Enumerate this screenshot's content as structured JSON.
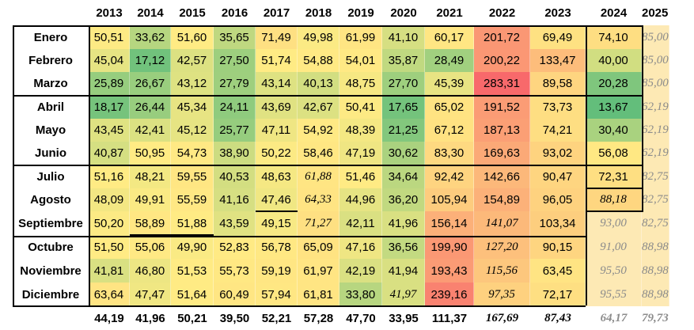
{
  "chart_data": {
    "type": "heatmap",
    "years": [
      "2013",
      "2014",
      "2015",
      "2016",
      "2017",
      "2018",
      "2019",
      "2020",
      "2021",
      "2022",
      "2023",
      "2024",
      "2025"
    ],
    "months": [
      "Enero",
      "Febrero",
      "Marzo",
      "Abril",
      "Mayo",
      "Junio",
      "Julio",
      "Agosto",
      "Septiembre",
      "Octubre",
      "Noviembre",
      "Diciembre"
    ],
    "values": [
      [
        "50,51",
        "33,62",
        "51,60",
        "35,65",
        "71,49",
        "49,98",
        "61,99",
        "41,10",
        "60,17",
        "201,72",
        "69,49",
        "74,10",
        "85,00"
      ],
      [
        "45,04",
        "17,12",
        "42,57",
        "27,50",
        "51,74",
        "54,88",
        "54,01",
        "35,87",
        "28,49",
        "200,22",
        "133,47",
        "40,00",
        "85,00"
      ],
      [
        "25,89",
        "26,67",
        "43,12",
        "27,79",
        "43,14",
        "40,13",
        "48,75",
        "27,70",
        "45,39",
        "283,31",
        "89,58",
        "20,28",
        "85,00"
      ],
      [
        "18,17",
        "26,44",
        "45,34",
        "24,11",
        "43,69",
        "42,67",
        "50,41",
        "17,65",
        "65,02",
        "191,52",
        "73,73",
        "13,67",
        "62,19"
      ],
      [
        "43,45",
        "42,41",
        "45,12",
        "25,77",
        "47,11",
        "54,92",
        "48,39",
        "21,25",
        "67,12",
        "187,13",
        "74,21",
        "30,40",
        "62,19"
      ],
      [
        "40,87",
        "50,95",
        "54,73",
        "38,90",
        "50,22",
        "58,46",
        "47,19",
        "30,62",
        "83,30",
        "169,63",
        "93,02",
        "56,08",
        "62,19"
      ],
      [
        "51,16",
        "48,21",
        "59,55",
        "40,53",
        "48,63",
        "61,88",
        "51,46",
        "34,64",
        "92,42",
        "142,66",
        "90,47",
        "72,31",
        "82,75"
      ],
      [
        "48,09",
        "49,91",
        "55,59",
        "41,16",
        "47,46",
        "64,33",
        "44,96",
        "36,20",
        "105,94",
        "154,89",
        "96,05",
        "88,18",
        "82,75"
      ],
      [
        "50,20",
        "58,89",
        "51,88",
        "43,59",
        "49,15",
        "71,27",
        "42,11",
        "41,96",
        "156,14",
        "141,07",
        "103,34",
        "93,00",
        "82,75"
      ],
      [
        "51,50",
        "55,06",
        "49,90",
        "52,83",
        "56,78",
        "65,09",
        "47,16",
        "36,56",
        "199,90",
        "127,20",
        "90,15",
        "91,00",
        "88,98"
      ],
      [
        "41,81",
        "46,80",
        "51,53",
        "55,73",
        "59,19",
        "61,97",
        "42,19",
        "41,94",
        "193,43",
        "115,56",
        "63,45",
        "95,50",
        "88,98"
      ],
      [
        "63,64",
        "47,47",
        "51,64",
        "60,49",
        "57,94",
        "61,81",
        "33,80",
        "41,97",
        "239,16",
        "97,35",
        "72,17",
        "95,55",
        "88,98"
      ]
    ],
    "estimated": [
      [
        false,
        false,
        false,
        false,
        false,
        false,
        false,
        false,
        false,
        false,
        false,
        false,
        true
      ],
      [
        false,
        false,
        false,
        false,
        false,
        false,
        false,
        false,
        false,
        false,
        false,
        false,
        true
      ],
      [
        false,
        false,
        false,
        false,
        false,
        false,
        false,
        false,
        false,
        false,
        false,
        false,
        true
      ],
      [
        false,
        false,
        false,
        false,
        false,
        false,
        false,
        false,
        false,
        false,
        false,
        false,
        true
      ],
      [
        false,
        false,
        false,
        false,
        false,
        false,
        false,
        false,
        false,
        false,
        false,
        false,
        true
      ],
      [
        false,
        false,
        false,
        false,
        false,
        false,
        false,
        false,
        false,
        false,
        false,
        false,
        true
      ],
      [
        false,
        false,
        false,
        false,
        false,
        true,
        false,
        false,
        false,
        false,
        false,
        false,
        true
      ],
      [
        false,
        false,
        false,
        false,
        false,
        true,
        false,
        false,
        false,
        false,
        false,
        true,
        true
      ],
      [
        false,
        false,
        false,
        false,
        false,
        true,
        false,
        false,
        false,
        true,
        false,
        true,
        true
      ],
      [
        false,
        false,
        false,
        false,
        false,
        false,
        false,
        false,
        false,
        true,
        false,
        true,
        true
      ],
      [
        false,
        false,
        false,
        false,
        false,
        false,
        false,
        false,
        false,
        true,
        false,
        true,
        true
      ],
      [
        false,
        false,
        false,
        false,
        false,
        false,
        false,
        true,
        false,
        true,
        false,
        true,
        true
      ]
    ],
    "totals": [
      "44,19",
      "41,96",
      "50,21",
      "39,50",
      "52,21",
      "57,28",
      "47,70",
      "33,95",
      "111,37",
      "167,69",
      "87,43",
      "64,17",
      "79,73"
    ],
    "totals_estimated": [
      false,
      false,
      false,
      false,
      false,
      false,
      false,
      false,
      false,
      true,
      true,
      true,
      true
    ],
    "colors": {
      "low": "#63be7b",
      "mid": "#ffeb84",
      "high": "#f8696b",
      "estimate_fill": "#fde9b4",
      "estimate_text": "#8c8c8c"
    }
  }
}
